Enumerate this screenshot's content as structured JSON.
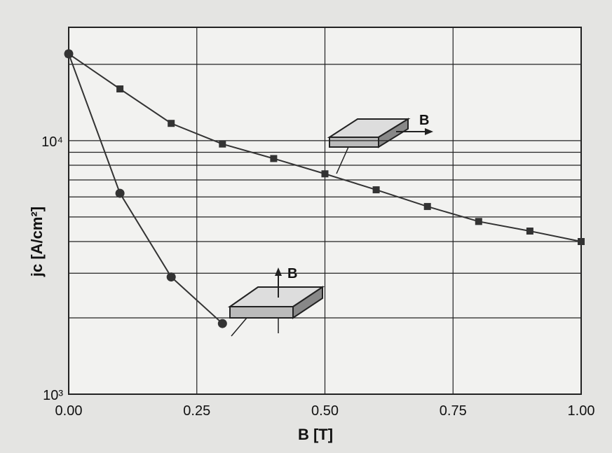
{
  "chart_data": {
    "type": "line",
    "xlabel": "B [T]",
    "ylabel": "jc [A/cm²]",
    "log_y": true,
    "grid": true,
    "xlim": [
      0,
      1
    ],
    "xticks": [
      {
        "value": 0,
        "label": "0.00"
      },
      {
        "value": 0.25,
        "label": "0.25"
      },
      {
        "value": 0.5,
        "label": "0.50"
      },
      {
        "value": 0.75,
        "label": "0.75"
      },
      {
        "value": 1,
        "label": "1.00"
      }
    ],
    "ylim": [
      1000,
      28000
    ],
    "yticks": [
      {
        "value": 1000,
        "label": "10³"
      },
      {
        "value": 10000,
        "label": "10⁴"
      }
    ],
    "yminor": [
      2000,
      3000,
      4000,
      5000,
      6000,
      7000,
      8000,
      9000,
      20000
    ],
    "series": [
      {
        "marker": "square",
        "color": "#333333",
        "x": [
          0,
          0.1,
          0.2,
          0.3,
          0.4,
          0.5,
          0.6,
          0.7,
          0.8,
          0.9,
          1.0
        ],
        "values": [
          22000,
          16000,
          11700,
          9700,
          8500,
          7400,
          6400,
          5500,
          4800,
          4400,
          4000
        ]
      },
      {
        "marker": "circle",
        "color": "#333333",
        "x": [
          0,
          0.1,
          0.2,
          0.3
        ],
        "values": [
          22000,
          6200,
          2900,
          1900
        ]
      }
    ],
    "annotations": [
      "B",
      "B"
    ]
  }
}
